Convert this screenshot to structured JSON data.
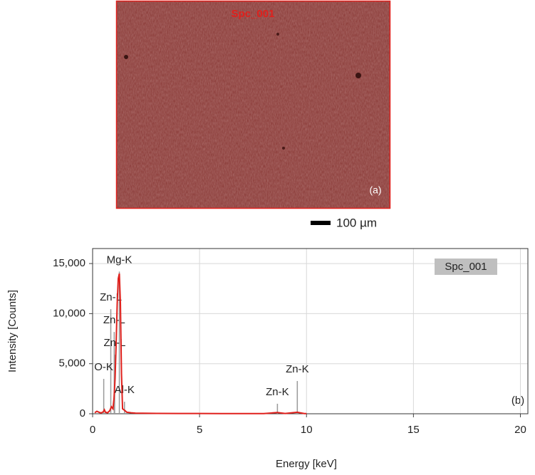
{
  "image": {
    "title": "Spc_001",
    "label": "(a)",
    "scale_bar": "100 µm"
  },
  "chart_data": {
    "type": "line",
    "panel_label": "(b)",
    "x_label": "Energy [keV]",
    "y_label": "Intensity [Counts]",
    "xlim": [
      0,
      20.35
    ],
    "xticks": [
      0,
      5,
      10,
      15,
      20
    ],
    "ylim": [
      0,
      16500
    ],
    "yticks": [
      0,
      {
        "value": 5000,
        "label": "5,000"
      },
      {
        "value": 10000,
        "label": "10,000"
      },
      {
        "value": 15000,
        "label": "15,000"
      }
    ],
    "grid": true,
    "legend": "upper right",
    "x": [
      0.1,
      0.2,
      0.3,
      0.4,
      0.5,
      0.55,
      0.6,
      0.7,
      0.8,
      0.88,
      0.95,
      1.0,
      1.05,
      1.1,
      1.15,
      1.2,
      1.25,
      1.3,
      1.35,
      1.4,
      1.49,
      1.6,
      1.8,
      2,
      3,
      4,
      5,
      6,
      7,
      8,
      8.64,
      9,
      9.57,
      9.9,
      10
    ],
    "series": [
      {
        "name": "Spc_001",
        "color": "#e0201c",
        "values": [
          100,
          250,
          150,
          80,
          200,
          400,
          150,
          100,
          300,
          700,
          500,
          1500,
          3500,
          7000,
          11000,
          13500,
          14000,
          11000,
          4000,
          500,
          350,
          150,
          100,
          60,
          40,
          30,
          30,
          20,
          20,
          20,
          120,
          30,
          150,
          20,
          20
        ]
      }
    ],
    "peaks": [
      {
        "label": "Mg-K",
        "energy": 1.25,
        "height": 14200
      },
      {
        "label": "Zn-L",
        "energy": 0.85,
        "height": 10450
      },
      {
        "label": "Zn-L",
        "energy": 1.01,
        "height": 8170
      },
      {
        "label": "Zn-L",
        "energy": 1.03,
        "height": 5900
      },
      {
        "label": "O-K",
        "energy": 0.52,
        "height": 3480
      },
      {
        "label": "Al-K",
        "energy": 1.49,
        "height": 1200
      },
      {
        "label": "Zn-K",
        "energy": 8.64,
        "height": 1000
      },
      {
        "label": "Zn-K",
        "energy": 9.57,
        "height": 3270
      }
    ]
  }
}
